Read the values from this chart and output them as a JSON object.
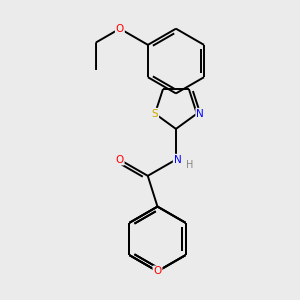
{
  "background_color": "#ebebeb",
  "bond_color": "#000000",
  "atom_colors": {
    "O": "#ff0000",
    "N": "#0000ff",
    "S": "#ccaa00",
    "H": "#888888",
    "C": "#000000"
  },
  "bond_width": 1.4,
  "font_size": 7.5
}
